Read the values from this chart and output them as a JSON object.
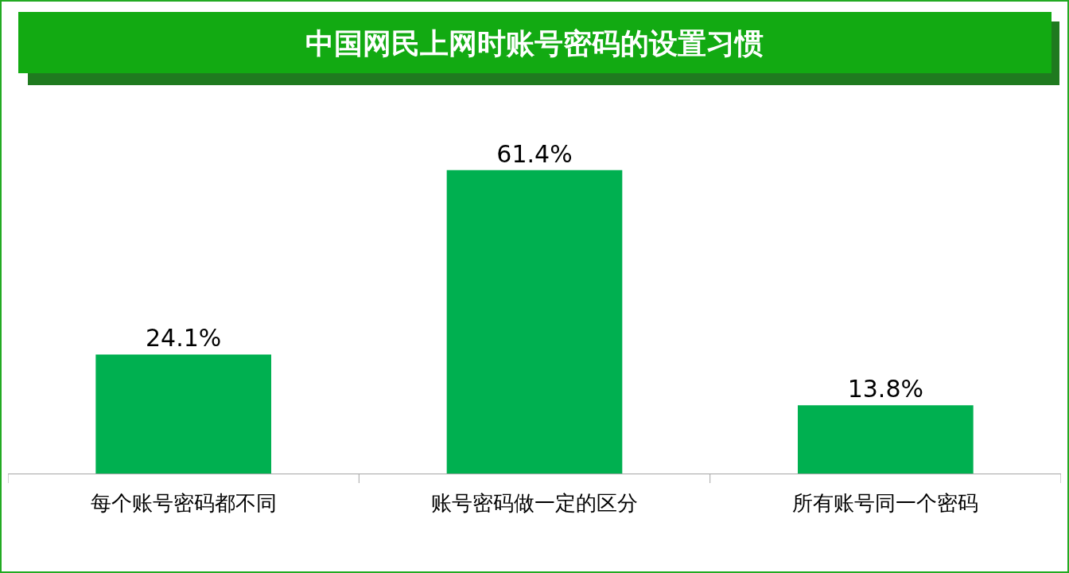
{
  "chart_data": {
    "type": "bar",
    "title": "中国网民上网时账号密码的设置习惯",
    "categories": [
      "每个账号密码都不同",
      "账号密码做一定的区分",
      "所有账号同一个密码"
    ],
    "values": [
      24.1,
      61.4,
      13.8
    ],
    "value_labels": [
      "24.1%",
      "61.4%",
      "13.8%"
    ],
    "color": "#00b050"
  }
}
